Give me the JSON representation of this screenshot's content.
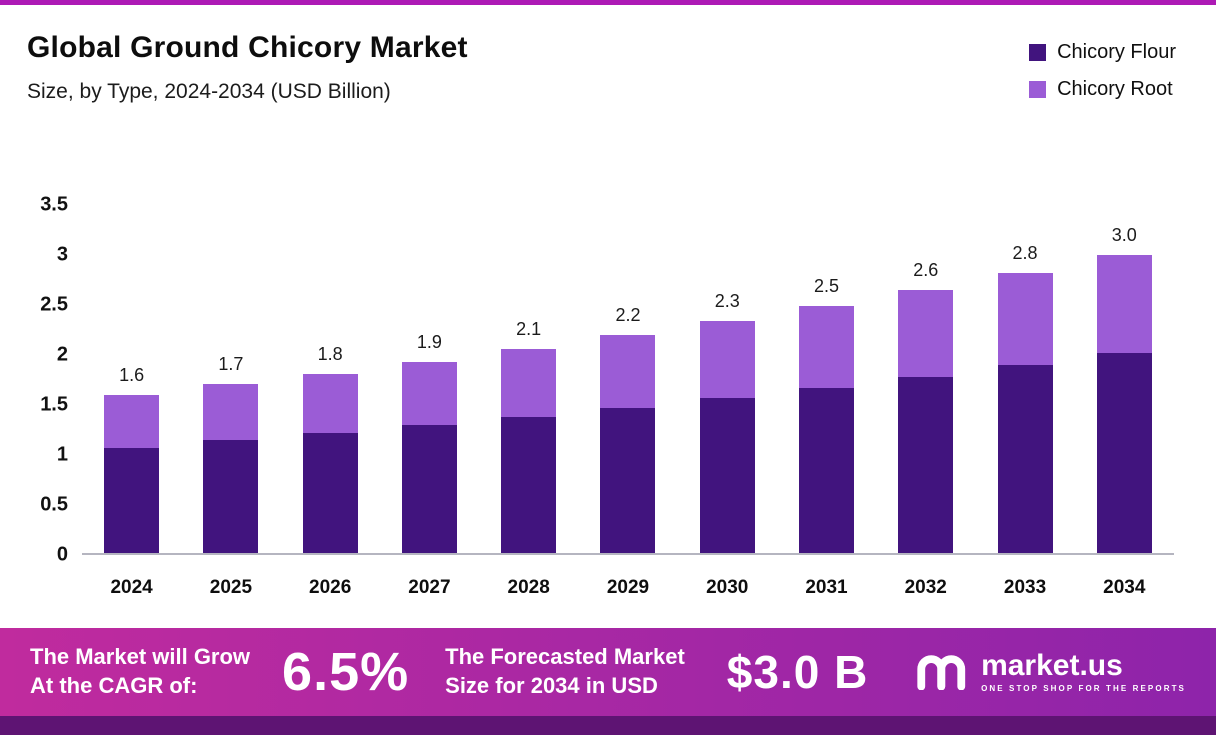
{
  "title": "Global Ground Chicory Market",
  "subtitle": "Size, by Type, 2024-2034 (USD Billion)",
  "legend": [
    {
      "label": "Chicory Flour",
      "color": "#41147e"
    },
    {
      "label": "Chicory Root",
      "color": "#9b5cd6"
    }
  ],
  "chart_data": {
    "type": "bar",
    "stacked": true,
    "title": "Global Ground Chicory Market Size, by Type, 2024-2034 (USD Billion)",
    "categories": [
      "2024",
      "2025",
      "2026",
      "2027",
      "2028",
      "2029",
      "2030",
      "2031",
      "2032",
      "2033",
      "2034"
    ],
    "series": [
      {
        "name": "Chicory Flour",
        "color": "#41147e",
        "values": [
          1.05,
          1.13,
          1.2,
          1.28,
          1.36,
          1.45,
          1.55,
          1.65,
          1.76,
          1.88,
          2.0
        ]
      },
      {
        "name": "Chicory Root",
        "color": "#9b5cd6",
        "values": [
          0.53,
          0.56,
          0.59,
          0.63,
          0.68,
          0.73,
          0.77,
          0.82,
          0.87,
          0.92,
          0.98
        ]
      }
    ],
    "total_labels": [
      "1.6",
      "1.7",
      "1.8",
      "1.9",
      "2.1",
      "2.2",
      "2.3",
      "2.5",
      "2.6",
      "2.8",
      "3.0"
    ],
    "xlabel": "",
    "ylabel": "",
    "ylim": [
      0,
      3.5
    ],
    "yticks": [
      "3.5",
      "3",
      "2.5",
      "2",
      "1.5",
      "1",
      "0.5",
      "0"
    ],
    "grid": false,
    "legend_position": "top-right"
  },
  "banner": {
    "growth_label_line1": "The Market will Grow",
    "growth_label_line2": "At the CAGR of:",
    "cagr_value": "6.5%",
    "forecast_label_line1": "The Forecasted Market",
    "forecast_label_line2": "Size for 2034 in USD",
    "forecast_value": "$3.0 B",
    "brand_name": "market.us",
    "brand_tagline": "ONE STOP SHOP FOR THE REPORTS"
  },
  "colors": {
    "top_line": "#ad1ab5",
    "banner_gradient_left": "#c02b9e",
    "banner_gradient_right": "#8e24aa",
    "bottom_strip": "#5e1473"
  }
}
